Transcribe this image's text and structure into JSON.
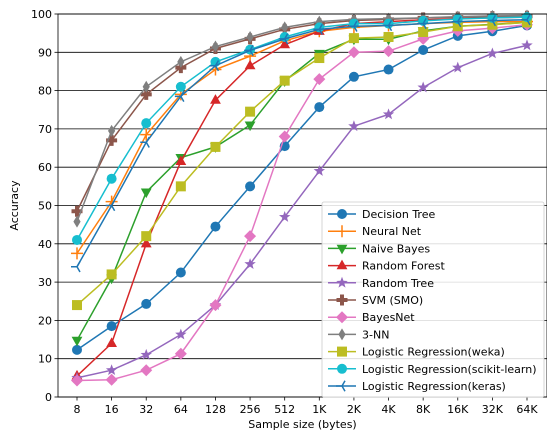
{
  "chart_data": {
    "type": "line",
    "xlabel": "Sample size (bytes)",
    "ylabel": "Accuracy",
    "ylim": [
      0,
      100
    ],
    "yticks": [
      0,
      10,
      20,
      30,
      40,
      50,
      60,
      70,
      80,
      90,
      100
    ],
    "grid": "horizontal",
    "legend_position": "bottom-right",
    "categories": [
      "8",
      "16",
      "32",
      "64",
      "128",
      "256",
      "512",
      "1K",
      "2K",
      "4K",
      "8K",
      "16K",
      "32K",
      "64K"
    ],
    "series": [
      {
        "name": "Decision Tree",
        "color": "#1f77b4",
        "marker": "circle",
        "values": [
          12.3,
          18.5,
          24.3,
          32.5,
          44.5,
          55.0,
          65.5,
          75.7,
          83.6,
          85.5,
          90.6,
          94.3,
          95.5,
          97.0
        ]
      },
      {
        "name": "Neural Net",
        "color": "#ff7f0e",
        "marker": "plus",
        "values": [
          37.5,
          51.0,
          68.5,
          79.0,
          85.5,
          89.0,
          93.0,
          95.5,
          96.5,
          97.0,
          97.5,
          97.8,
          98.0,
          98.0
        ]
      },
      {
        "name": "Naive Bayes",
        "color": "#2ca02c",
        "marker": "triangle-down",
        "values": [
          14.8,
          31.0,
          53.5,
          62.5,
          65.3,
          71.0,
          82.5,
          89.7,
          93.4,
          93.4,
          95.6,
          96.8,
          97.3,
          97.8
        ]
      },
      {
        "name": "Random Forest",
        "color": "#d62728",
        "marker": "triangle-up",
        "values": [
          5.5,
          14.0,
          40.0,
          61.5,
          77.5,
          86.5,
          92.0,
          95.5,
          97.5,
          98.0,
          98.5,
          98.8,
          99.0,
          99.2
        ]
      },
      {
        "name": "Random Tree",
        "color": "#9467bd",
        "marker": "star",
        "values": [
          5.0,
          7.0,
          11.0,
          16.3,
          24.0,
          34.7,
          47.0,
          59.0,
          70.7,
          73.8,
          80.8,
          86.0,
          89.7,
          91.8
        ]
      },
      {
        "name": "SVM (SMO)",
        "color": "#8c564b",
        "marker": "plus-thick",
        "values": [
          48.5,
          67.0,
          79.0,
          86.0,
          91.0,
          93.5,
          96.0,
          97.5,
          98.3,
          98.6,
          99.0,
          99.2,
          99.3,
          99.4
        ]
      },
      {
        "name": "BayesNet",
        "color": "#e377c2",
        "marker": "diamond",
        "values": [
          4.3,
          4.5,
          7.0,
          11.3,
          24.0,
          42.0,
          68.0,
          83.0,
          90.0,
          90.3,
          93.5,
          95.6,
          96.3,
          97.2
        ]
      },
      {
        "name": "3-NN",
        "color": "#7f7f7f",
        "marker": "thin-diamond",
        "values": [
          45.8,
          69.5,
          81.0,
          87.5,
          91.5,
          94.0,
          96.5,
          98.0,
          98.6,
          98.8,
          99.0,
          99.3,
          99.5,
          99.6
        ]
      },
      {
        "name": "Logistic Regression(weka)",
        "color": "#bcbd22",
        "marker": "square",
        "values": [
          24.0,
          32.0,
          42.0,
          55.0,
          65.3,
          74.5,
          82.6,
          88.5,
          93.7,
          94.0,
          95.3,
          96.8,
          97.2,
          97.8
        ]
      },
      {
        "name": "Logistic Regression(scikit-learn)",
        "color": "#17becf",
        "marker": "circle",
        "values": [
          41.0,
          57.0,
          71.5,
          81.0,
          87.5,
          90.7,
          94.0,
          96.5,
          97.5,
          97.5,
          98.2,
          98.7,
          99.0,
          99.2
        ]
      },
      {
        "name": "Logistic Regression(keras)",
        "color": "#1f77b4",
        "marker": "tri-left",
        "values": [
          34.0,
          50.0,
          66.5,
          78.5,
          86.5,
          90.5,
          93.5,
          96.0,
          96.8,
          97.0,
          97.5,
          98.0,
          98.3,
          98.5
        ]
      }
    ]
  }
}
